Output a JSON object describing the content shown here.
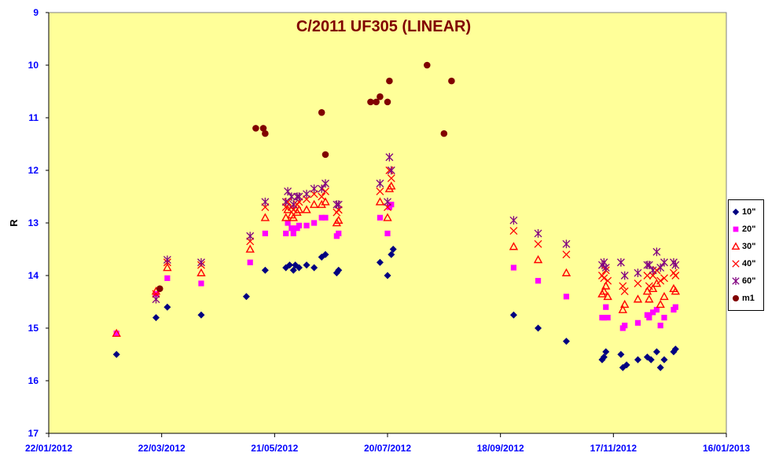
{
  "chart_data": {
    "type": "scatter",
    "title": "C/2011 UF305 (LINEAR)",
    "xlabel": "",
    "ylabel": "R",
    "x_axis_type": "date",
    "xlim": [
      "22/01/2012",
      "16/01/2013"
    ],
    "ylim": [
      9,
      17
    ],
    "y_inverted": true,
    "y_ticks": [
      "9",
      "10",
      "11",
      "12",
      "13",
      "14",
      "15",
      "16",
      "17"
    ],
    "x_ticks": [
      "22/01/2012",
      "22/03/2012",
      "21/05/2012",
      "20/07/2012",
      "18/09/2012",
      "17/11/2012",
      "16/01/2013"
    ],
    "grid": false,
    "legend_position": "right",
    "colors": {
      "plot_background": "#FFFF99",
      "title": "#800000",
      "axis_labels": "#0000FF"
    },
    "series": [
      {
        "name": "10\"",
        "marker": "diamond",
        "color": "#000080",
        "points": [
          [
            "2012-02-27",
            15.5
          ],
          [
            "2012-03-19",
            14.8
          ],
          [
            "2012-03-25",
            14.6
          ],
          [
            "2012-04-12",
            14.75
          ],
          [
            "2012-05-06",
            14.4
          ],
          [
            "2012-05-16",
            13.9
          ],
          [
            "2012-05-27",
            13.85
          ],
          [
            "2012-05-29",
            13.8
          ],
          [
            "2012-05-31",
            13.9
          ],
          [
            "2012-06-01",
            13.8
          ],
          [
            "2012-06-03",
            13.85
          ],
          [
            "2012-06-07",
            13.8
          ],
          [
            "2012-06-11",
            13.85
          ],
          [
            "2012-06-15",
            13.65
          ],
          [
            "2012-06-17",
            13.6
          ],
          [
            "2012-06-23",
            13.95
          ],
          [
            "2012-06-24",
            13.9
          ],
          [
            "2012-07-16",
            13.75
          ],
          [
            "2012-07-20",
            14.0
          ],
          [
            "2012-07-22",
            13.6
          ],
          [
            "2012-07-23",
            13.5
          ],
          [
            "2012-09-25",
            14.75
          ],
          [
            "2012-10-08",
            15.0
          ],
          [
            "2012-10-23",
            15.25
          ],
          [
            "2012-11-11",
            15.6
          ],
          [
            "2012-11-12",
            15.55
          ],
          [
            "2012-11-13",
            15.45
          ],
          [
            "2012-11-21",
            15.5
          ],
          [
            "2012-11-22",
            15.75
          ],
          [
            "2012-11-24",
            15.7
          ],
          [
            "2012-11-30",
            15.6
          ],
          [
            "2012-12-05",
            15.55
          ],
          [
            "2012-12-07",
            15.6
          ],
          [
            "2012-12-10",
            15.45
          ],
          [
            "2012-12-12",
            15.75
          ],
          [
            "2012-12-14",
            15.6
          ],
          [
            "2012-12-19",
            15.45
          ],
          [
            "2012-12-20",
            15.4
          ]
        ]
      },
      {
        "name": "20\"",
        "marker": "square",
        "color": "#FF00FF",
        "points": [
          [
            "2012-02-27",
            15.1
          ],
          [
            "2012-03-19",
            14.35
          ],
          [
            "2012-03-25",
            14.05
          ],
          [
            "2012-04-12",
            14.15
          ],
          [
            "2012-05-08",
            13.75
          ],
          [
            "2012-05-16",
            13.2
          ],
          [
            "2012-05-27",
            13.2
          ],
          [
            "2012-05-28",
            13.0
          ],
          [
            "2012-05-30",
            13.1
          ],
          [
            "2012-05-31",
            13.2
          ],
          [
            "2012-06-02",
            13.1
          ],
          [
            "2012-06-03",
            13.05
          ],
          [
            "2012-06-07",
            13.05
          ],
          [
            "2012-06-11",
            13.0
          ],
          [
            "2012-06-15",
            12.9
          ],
          [
            "2012-06-17",
            12.9
          ],
          [
            "2012-06-23",
            13.25
          ],
          [
            "2012-06-24",
            13.2
          ],
          [
            "2012-07-16",
            12.9
          ],
          [
            "2012-07-20",
            13.2
          ],
          [
            "2012-07-21",
            12.7
          ],
          [
            "2012-07-22",
            12.65
          ],
          [
            "2012-09-25",
            13.85
          ],
          [
            "2012-10-08",
            14.1
          ],
          [
            "2012-10-23",
            14.4
          ],
          [
            "2012-11-11",
            14.8
          ],
          [
            "2012-11-12",
            14.8
          ],
          [
            "2012-11-13",
            14.6
          ],
          [
            "2012-11-14",
            14.8
          ],
          [
            "2012-11-22",
            15.0
          ],
          [
            "2012-11-23",
            14.95
          ],
          [
            "2012-11-30",
            14.9
          ],
          [
            "2012-12-05",
            14.75
          ],
          [
            "2012-12-06",
            14.8
          ],
          [
            "2012-12-08",
            14.7
          ],
          [
            "2012-12-10",
            14.65
          ],
          [
            "2012-12-12",
            14.95
          ],
          [
            "2012-12-14",
            14.8
          ],
          [
            "2012-12-19",
            14.65
          ],
          [
            "2012-12-20",
            14.6
          ]
        ]
      },
      {
        "name": "30\"",
        "marker": "triangle",
        "color": "#FF0000",
        "points": [
          [
            "2012-02-27",
            15.1
          ],
          [
            "2012-03-19",
            14.3
          ],
          [
            "2012-03-25",
            13.85
          ],
          [
            "2012-04-12",
            13.95
          ],
          [
            "2012-05-08",
            13.5
          ],
          [
            "2012-05-16",
            12.9
          ],
          [
            "2012-05-27",
            12.9
          ],
          [
            "2012-05-28",
            12.75
          ],
          [
            "2012-05-30",
            12.85
          ],
          [
            "2012-05-31",
            12.9
          ],
          [
            "2012-06-02",
            12.8
          ],
          [
            "2012-06-03",
            12.75
          ],
          [
            "2012-06-07",
            12.75
          ],
          [
            "2012-06-11",
            12.65
          ],
          [
            "2012-06-15",
            12.65
          ],
          [
            "2012-06-17",
            12.6
          ],
          [
            "2012-06-23",
            13.0
          ],
          [
            "2012-06-24",
            12.95
          ],
          [
            "2012-07-16",
            12.6
          ],
          [
            "2012-07-20",
            12.9
          ],
          [
            "2012-07-21",
            12.35
          ],
          [
            "2012-07-22",
            12.3
          ],
          [
            "2012-09-25",
            13.45
          ],
          [
            "2012-10-08",
            13.7
          ],
          [
            "2012-10-23",
            13.95
          ],
          [
            "2012-11-11",
            14.35
          ],
          [
            "2012-11-12",
            14.3
          ],
          [
            "2012-11-13",
            14.2
          ],
          [
            "2012-11-14",
            14.4
          ],
          [
            "2012-11-22",
            14.65
          ],
          [
            "2012-11-23",
            14.55
          ],
          [
            "2012-11-30",
            14.45
          ],
          [
            "2012-12-05",
            14.3
          ],
          [
            "2012-12-06",
            14.45
          ],
          [
            "2012-12-08",
            14.25
          ],
          [
            "2012-12-10",
            14.15
          ],
          [
            "2012-12-12",
            14.55
          ],
          [
            "2012-12-14",
            14.4
          ],
          [
            "2012-12-19",
            14.25
          ],
          [
            "2012-12-20",
            14.3
          ]
        ]
      },
      {
        "name": "40\"",
        "marker": "x",
        "color": "#FF0000",
        "points": [
          [
            "2012-03-19",
            14.35
          ],
          [
            "2012-03-25",
            13.75
          ],
          [
            "2012-04-12",
            13.8
          ],
          [
            "2012-05-08",
            13.35
          ],
          [
            "2012-05-16",
            12.7
          ],
          [
            "2012-05-27",
            12.7
          ],
          [
            "2012-05-28",
            12.6
          ],
          [
            "2012-05-30",
            12.7
          ],
          [
            "2012-05-31",
            12.75
          ],
          [
            "2012-06-02",
            12.65
          ],
          [
            "2012-06-03",
            12.6
          ],
          [
            "2012-06-07",
            12.55
          ],
          [
            "2012-06-11",
            12.45
          ],
          [
            "2012-06-15",
            12.5
          ],
          [
            "2012-06-17",
            12.4
          ],
          [
            "2012-06-23",
            12.8
          ],
          [
            "2012-06-24",
            12.75
          ],
          [
            "2012-07-16",
            12.4
          ],
          [
            "2012-07-20",
            12.7
          ],
          [
            "2012-07-21",
            12.0
          ],
          [
            "2012-07-22",
            12.15
          ],
          [
            "2012-09-25",
            13.15
          ],
          [
            "2012-10-08",
            13.4
          ],
          [
            "2012-10-23",
            13.6
          ],
          [
            "2012-11-11",
            14.0
          ],
          [
            "2012-11-12",
            14.05
          ],
          [
            "2012-11-13",
            13.9
          ],
          [
            "2012-11-14",
            14.1
          ],
          [
            "2012-11-22",
            14.2
          ],
          [
            "2012-11-23",
            14.3
          ],
          [
            "2012-11-30",
            14.15
          ],
          [
            "2012-12-05",
            14.0
          ],
          [
            "2012-12-06",
            14.2
          ],
          [
            "2012-12-08",
            14.0
          ],
          [
            "2012-12-10",
            13.9
          ],
          [
            "2012-12-12",
            14.1
          ],
          [
            "2012-12-14",
            14.05
          ],
          [
            "2012-12-19",
            13.95
          ],
          [
            "2012-12-20",
            14.0
          ]
        ]
      },
      {
        "name": "60\"",
        "marker": "star",
        "color": "#800080",
        "points": [
          [
            "2012-03-19",
            14.45
          ],
          [
            "2012-03-25",
            13.7
          ],
          [
            "2012-04-12",
            13.75
          ],
          [
            "2012-05-08",
            13.25
          ],
          [
            "2012-05-16",
            12.6
          ],
          [
            "2012-05-27",
            12.6
          ],
          [
            "2012-05-28",
            12.4
          ],
          [
            "2012-05-30",
            12.5
          ],
          [
            "2012-05-31",
            12.65
          ],
          [
            "2012-06-02",
            12.5
          ],
          [
            "2012-06-03",
            12.5
          ],
          [
            "2012-06-07",
            12.45
          ],
          [
            "2012-06-11",
            12.35
          ],
          [
            "2012-06-15",
            12.35
          ],
          [
            "2012-06-17",
            12.25
          ],
          [
            "2012-06-23",
            12.65
          ],
          [
            "2012-06-24",
            12.65
          ],
          [
            "2012-07-16",
            12.25
          ],
          [
            "2012-07-20",
            12.6
          ],
          [
            "2012-07-21",
            11.75
          ],
          [
            "2012-07-22",
            12.0
          ],
          [
            "2012-09-25",
            12.95
          ],
          [
            "2012-10-08",
            13.2
          ],
          [
            "2012-10-23",
            13.4
          ],
          [
            "2012-11-11",
            13.8
          ],
          [
            "2012-11-12",
            13.75
          ],
          [
            "2012-11-13",
            13.85
          ],
          [
            "2012-11-21",
            13.75
          ],
          [
            "2012-11-23",
            14.0
          ],
          [
            "2012-11-30",
            13.95
          ],
          [
            "2012-12-05",
            13.8
          ],
          [
            "2012-12-06",
            13.8
          ],
          [
            "2012-12-08",
            13.9
          ],
          [
            "2012-12-10",
            13.55
          ],
          [
            "2012-12-12",
            13.85
          ],
          [
            "2012-12-14",
            13.75
          ],
          [
            "2012-12-19",
            13.75
          ],
          [
            "2012-12-20",
            13.8
          ]
        ]
      },
      {
        "name": "m1",
        "marker": "circle",
        "color": "#800000",
        "points": [
          [
            "2012-03-21",
            14.25
          ],
          [
            "2012-05-11",
            11.2
          ],
          [
            "2012-05-15",
            11.2
          ],
          [
            "2012-05-16",
            11.3
          ],
          [
            "2012-06-15",
            10.9
          ],
          [
            "2012-06-17",
            11.7
          ],
          [
            "2012-07-11",
            10.7
          ],
          [
            "2012-07-14",
            10.7
          ],
          [
            "2012-07-16",
            10.6
          ],
          [
            "2012-07-20",
            10.7
          ],
          [
            "2012-07-21",
            10.3
          ],
          [
            "2012-08-10",
            10.0
          ],
          [
            "2012-08-19",
            11.3
          ],
          [
            "2012-08-23",
            10.3
          ]
        ]
      }
    ]
  }
}
